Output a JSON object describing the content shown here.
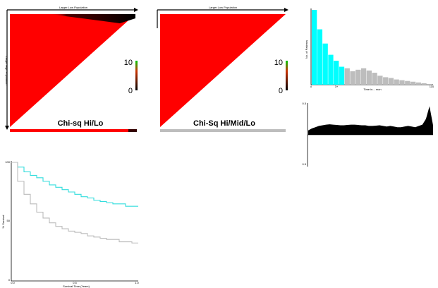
{
  "heatmaps": [
    {
      "top_label": "Larger Low Population",
      "left_label": "Larger High Population",
      "title": "Chi-sq Hi/Lo",
      "scale_max": "10",
      "scale_min": "0"
    },
    {
      "top_label": "Larger Low Population",
      "title": "Chi-Sq Hi/Mid/Lo",
      "scale_max": "10",
      "scale_min": "0"
    }
  ],
  "colors": {
    "heat": "#ff0000",
    "heat_dark": "#1a0000",
    "scale_top": "#00cc00",
    "cyan": "#00ffff",
    "gray": "#bdbdbd",
    "area": "#000000",
    "survival_high": "#33dddd",
    "survival_low": "#bbbbbb"
  },
  "chart_data": [
    {
      "type": "bar",
      "ylabel": "No. of Patients",
      "xlabel": "Time in... mon",
      "xtick_labels": [
        "0",
        "3+",
        "110"
      ],
      "values": [
        100,
        74,
        55,
        40,
        32,
        24,
        22,
        18,
        20,
        22,
        19,
        16,
        12,
        10,
        9,
        7,
        6,
        5,
        4,
        3,
        2,
        1
      ],
      "highlight_count": 6,
      "ylim": [
        0,
        100
      ]
    },
    {
      "type": "area",
      "ytick_labels": [
        "0.5",
        "0.5"
      ],
      "values": [
        0.07,
        0.1,
        0.12,
        0.14,
        0.15,
        0.16,
        0.165,
        0.16,
        0.155,
        0.15,
        0.15,
        0.155,
        0.16,
        0.16,
        0.155,
        0.15,
        0.15,
        0.14,
        0.14,
        0.145,
        0.15,
        0.14,
        0.13,
        0.14,
        0.13,
        0.12,
        0.12,
        0.13,
        0.14,
        0.13,
        0.12,
        0.14,
        0.16,
        0.25,
        0.45,
        0.15
      ],
      "ylim": [
        -0.5,
        0.5
      ]
    },
    {
      "type": "line",
      "ylabel": "% Survival",
      "xlabel": "Survival Time (Years)",
      "xtick_labels": [
        "0.0",
        "0.5",
        "1.0"
      ],
      "ytick_labels": [
        "0",
        "50",
        "100"
      ],
      "x": [
        0,
        0.05,
        0.1,
        0.15,
        0.2,
        0.25,
        0.3,
        0.35,
        0.4,
        0.45,
        0.5,
        0.55,
        0.6,
        0.65,
        0.7,
        0.75,
        0.8,
        0.85,
        0.9,
        0.95,
        1.0
      ],
      "series": [
        {
          "values": [
            100,
            96,
            92,
            89,
            87,
            84,
            81,
            79,
            77,
            75,
            73,
            71,
            70,
            68,
            67,
            66,
            65,
            65,
            63,
            63,
            63
          ]
        },
        {
          "values": [
            100,
            84,
            73,
            65,
            58,
            53,
            49,
            46,
            44,
            42,
            41,
            40,
            38,
            37,
            36,
            35,
            35,
            33,
            33,
            32,
            32
          ]
        }
      ],
      "xlim": [
        0,
        1
      ],
      "ylim": [
        0,
        100
      ]
    }
  ]
}
